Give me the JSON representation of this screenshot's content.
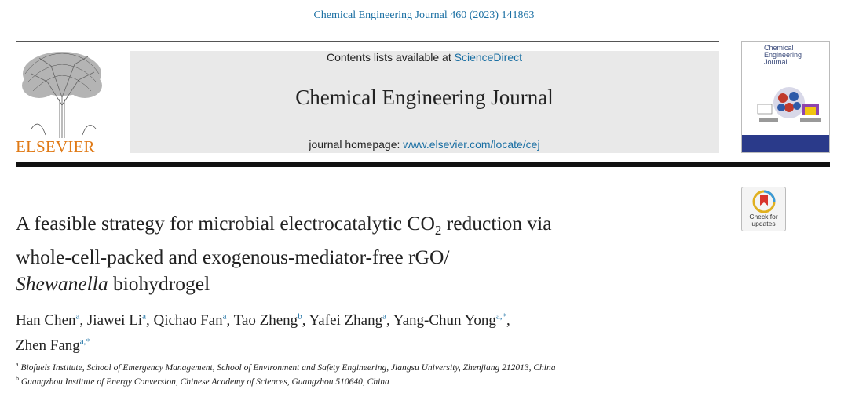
{
  "citation": "Chemical Engineering Journal 460 (2023) 141863",
  "publisher": {
    "name": "ELSEVIER"
  },
  "masthead": {
    "contents_prefix": "Contents lists available at ",
    "contents_link": "ScienceDirect",
    "journal_title": "Chemical Engineering Journal",
    "homepage_prefix": "journal homepage: ",
    "homepage_url": "www.elsevier.com/locate/cej"
  },
  "cover": {
    "title_line1": "Chemical",
    "title_line2": "Engineering",
    "title_line3": "Journal"
  },
  "crossmark": {
    "label_line1": "Check for",
    "label_line2": "updates"
  },
  "article": {
    "title_part1": "A feasible strategy for microbial electrocatalytic CO",
    "title_sub": "2",
    "title_part2": " reduction via",
    "title_line2": "whole-cell-packed and exogenous-mediator-free rGO/",
    "title_italic": "Shewanella",
    "title_line3_rest": " biohydrogel"
  },
  "authors": [
    {
      "name": "Han Chen",
      "aff": "a"
    },
    {
      "name": "Jiawei Li",
      "aff": "a"
    },
    {
      "name": "Qichao Fan",
      "aff": "a"
    },
    {
      "name": "Tao Zheng",
      "aff": "b"
    },
    {
      "name": "Yafei Zhang",
      "aff": "a"
    },
    {
      "name": "Yang-Chun Yong",
      "aff": "a,*"
    },
    {
      "name": "Zhen Fang",
      "aff": "a,*"
    }
  ],
  "affiliations": [
    {
      "key": "a",
      "text": "Biofuels Institute, School of Emergency Management, School of Environment and Safety Engineering, Jiangsu University, Zhenjiang 212013, China"
    },
    {
      "key": "b",
      "text": "Guangzhou Institute of Energy Conversion, Chinese Academy of Sciences, Guangzhou 510640, China"
    }
  ],
  "colors": {
    "link": "#1a6fa3",
    "elsevier_orange": "#e07a16",
    "masthead_bg": "#e9e9e9"
  }
}
